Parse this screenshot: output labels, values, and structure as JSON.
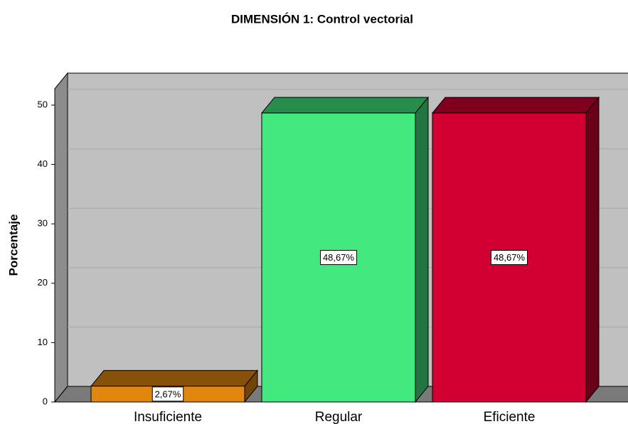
{
  "chart_data": {
    "type": "bar",
    "title": "DIMENSIÓN 1: Control vectorial",
    "y_label": "Porcentaje",
    "categories": [
      "Insuficiente",
      "Regular",
      "Eficiente"
    ],
    "values": [
      2.67,
      48.67,
      48.67
    ],
    "value_labels": [
      "2,67%",
      "48,67%",
      "48,67%"
    ],
    "colors": [
      "#e1870f",
      "#43e97f",
      "#d20032"
    ],
    "ylim": [
      0,
      52.75
    ],
    "yticks": [
      0,
      10,
      20,
      30,
      40,
      50
    ],
    "grid": true
  }
}
